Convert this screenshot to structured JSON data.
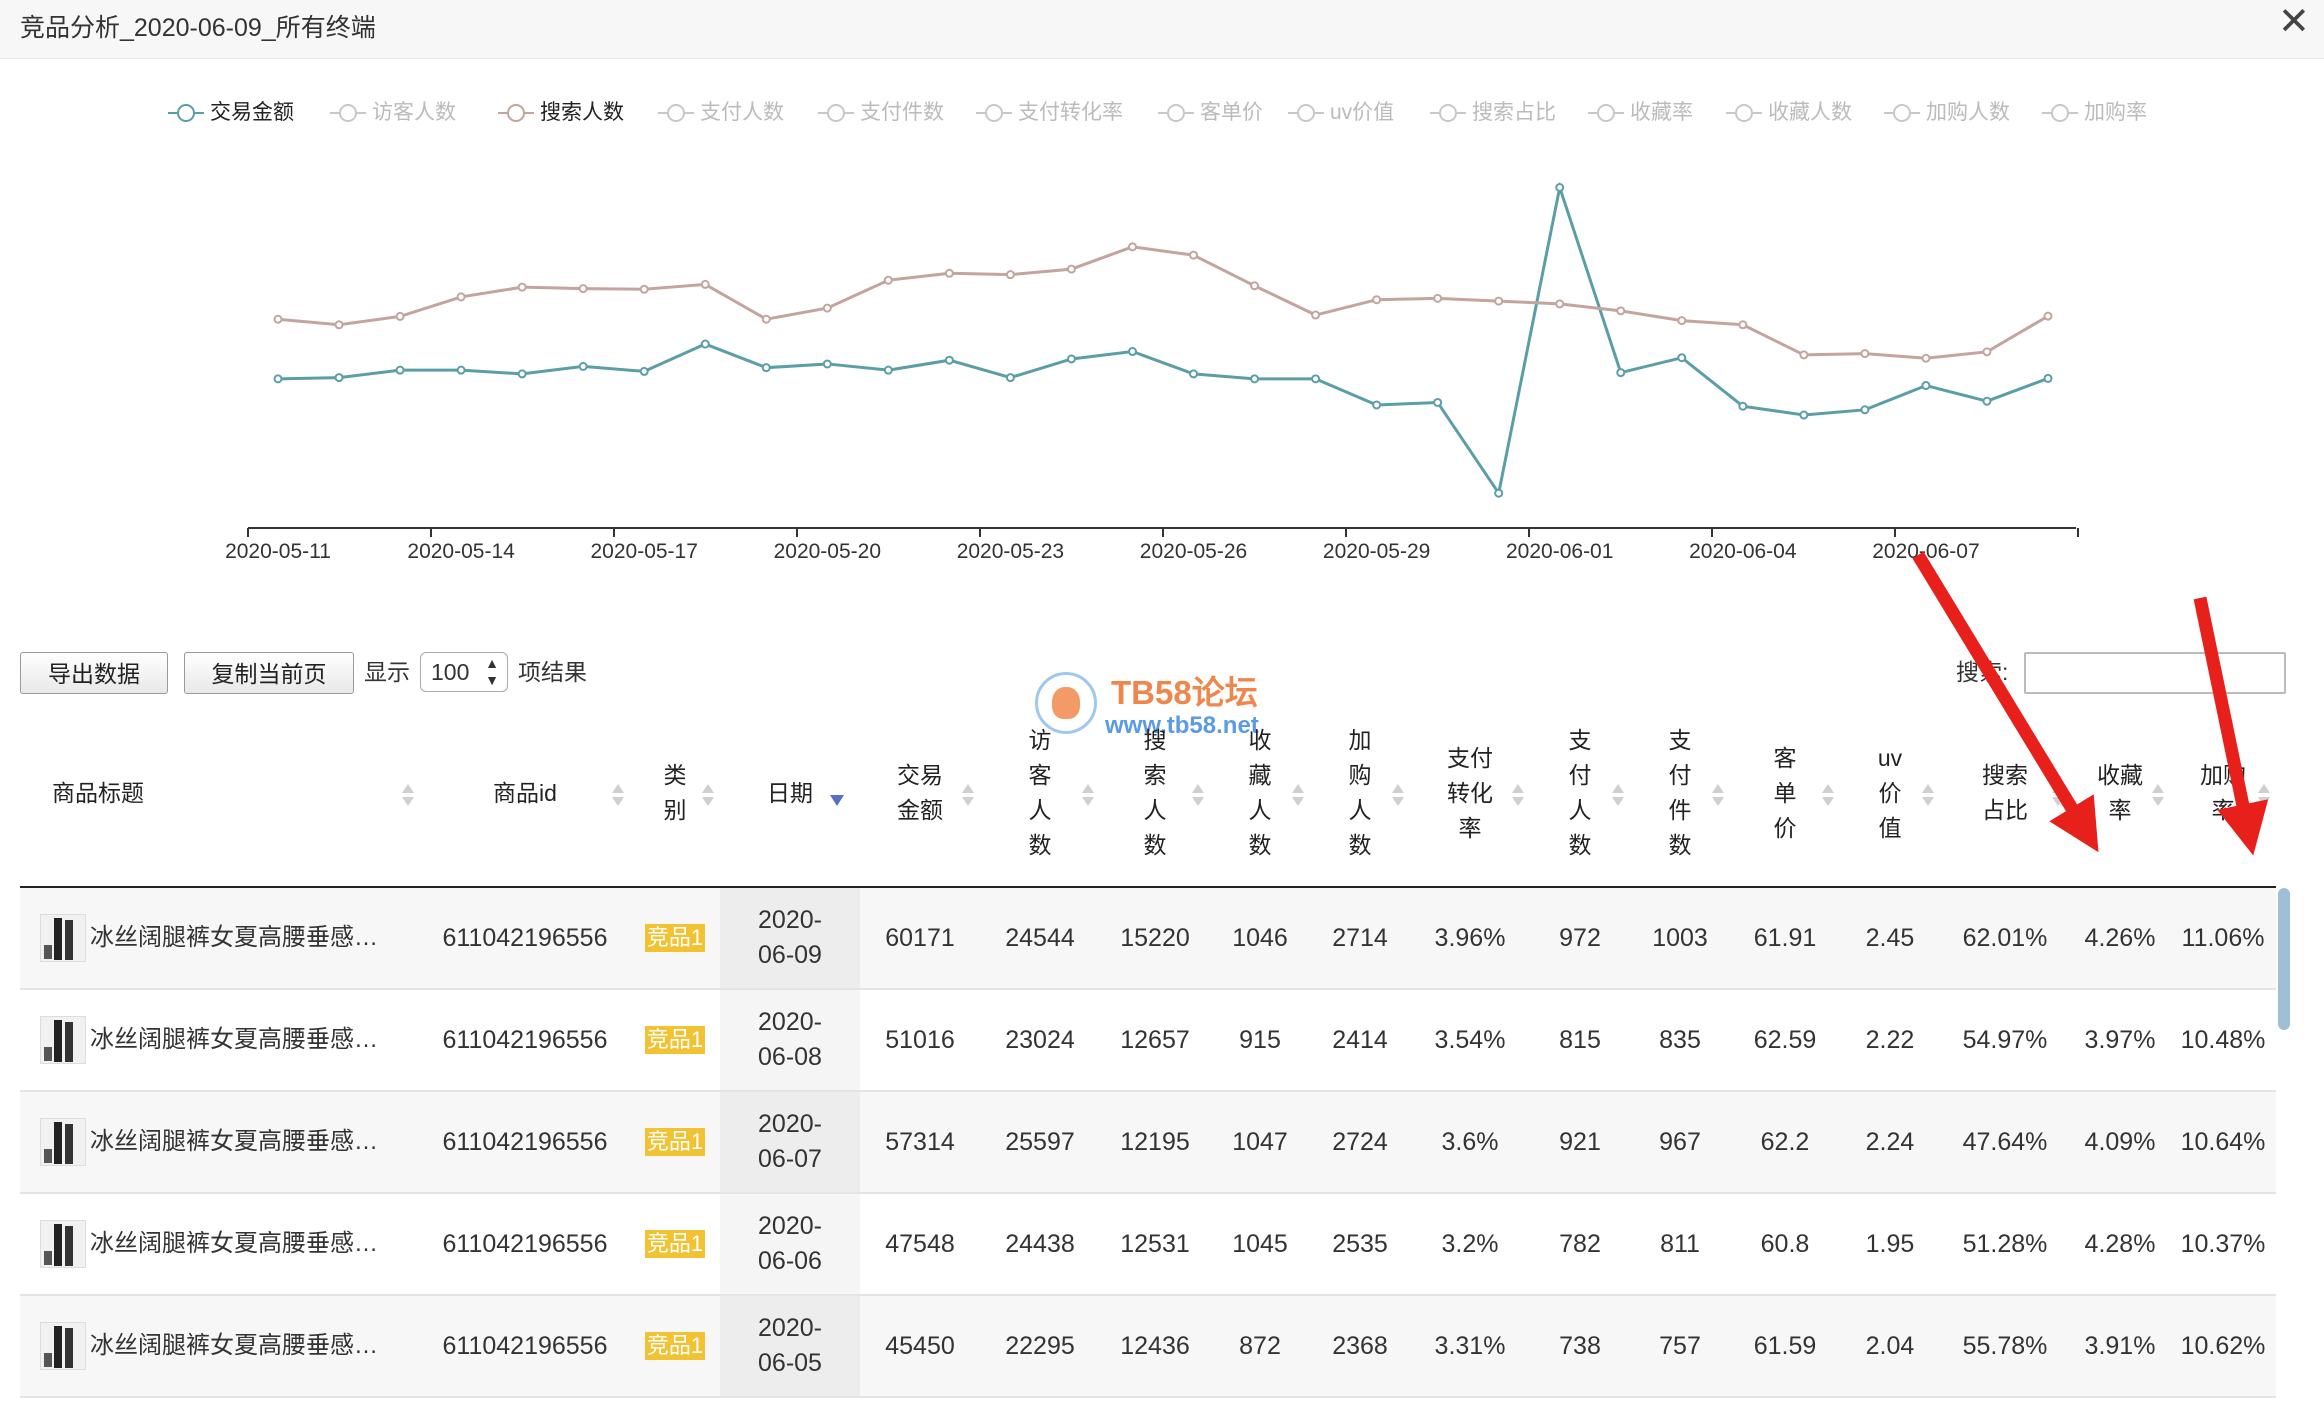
{
  "window": {
    "title": "竞品分析_2020-06-09_所有终端",
    "close_label": "✕"
  },
  "legend": [
    {
      "label": "交易金额",
      "active": true,
      "color": "#5b9ea6"
    },
    {
      "label": "访客人数",
      "active": false,
      "color": "#c8c8c8"
    },
    {
      "label": "搜索人数",
      "active": true,
      "color": "#c4a49d"
    },
    {
      "label": "支付人数",
      "active": false,
      "color": "#c8c8c8"
    },
    {
      "label": "支付件数",
      "active": false,
      "color": "#c8c8c8"
    },
    {
      "label": "支付转化率",
      "active": false,
      "color": "#c8c8c8"
    },
    {
      "label": "客单价",
      "active": false,
      "color": "#c8c8c8"
    },
    {
      "label": "uv价值",
      "active": false,
      "color": "#c8c8c8"
    },
    {
      "label": "搜索占比",
      "active": false,
      "color": "#c8c8c8"
    },
    {
      "label": "收藏率",
      "active": false,
      "color": "#c8c8c8"
    },
    {
      "label": "收藏人数",
      "active": false,
      "color": "#c8c8c8"
    },
    {
      "label": "加购人数",
      "active": false,
      "color": "#c8c8c8"
    },
    {
      "label": "加购率",
      "active": false,
      "color": "#c8c8c8"
    }
  ],
  "chart_data": {
    "type": "line",
    "x": [
      "2020-05-11",
      "2020-05-12",
      "2020-05-13",
      "2020-05-14",
      "2020-05-15",
      "2020-05-16",
      "2020-05-17",
      "2020-05-18",
      "2020-05-19",
      "2020-05-20",
      "2020-05-21",
      "2020-05-22",
      "2020-05-23",
      "2020-05-24",
      "2020-05-25",
      "2020-05-26",
      "2020-05-27",
      "2020-05-28",
      "2020-05-29",
      "2020-05-30",
      "2020-05-31",
      "2020-06-01",
      "2020-06-02",
      "2020-06-03",
      "2020-06-04",
      "2020-06-05",
      "2020-06-06",
      "2020-06-07",
      "2020-06-08",
      "2020-06-09"
    ],
    "x_ticks": [
      "2020-05-11",
      "2020-05-14",
      "2020-05-17",
      "2020-05-20",
      "2020-05-23",
      "2020-05-26",
      "2020-05-29",
      "2020-06-01",
      "2020-06-04",
      "2020-06-07"
    ],
    "series": [
      {
        "name": "交易金额",
        "color": "#5b9ea6",
        "values": [
          60000,
          60500,
          63500,
          63500,
          62000,
          65000,
          63000,
          74000,
          64500,
          66000,
          63500,
          67500,
          60500,
          68000,
          71000,
          62000,
          60000,
          60000,
          49500,
          50500,
          14000,
          137000,
          62500,
          68500,
          49000,
          45450,
          47548,
          57314,
          51016,
          60171
        ]
      },
      {
        "name": "搜索人数",
        "color": "#c4a49d",
        "values": [
          15000,
          14600,
          15200,
          16600,
          17300,
          17200,
          17150,
          17500,
          15000,
          15800,
          17800,
          18300,
          18200,
          18600,
          20200,
          19600,
          17400,
          15300,
          16400,
          16500,
          16300,
          16100,
          15600,
          14900,
          14600,
          12436,
          12531,
          12195,
          12657,
          15220
        ]
      }
    ],
    "title": "",
    "xlabel": "",
    "ylabel": "",
    "ylim_left": [
      0,
      140000
    ],
    "ylim_right": [
      0,
      25000
    ],
    "grid": false,
    "legend_position": "top"
  },
  "toolbar": {
    "export_label": "导出数据",
    "copy_label": "复制当前页",
    "show_label": "显示",
    "page_size": "100",
    "results_label": "项结果",
    "search_label": "搜索:",
    "search_value": ""
  },
  "watermark": {
    "name": "TB58论坛",
    "url": "www.tb58.net"
  },
  "table": {
    "columns": [
      {
        "label": "商品标题"
      },
      {
        "label": "商品id"
      },
      {
        "label": "类\n别"
      },
      {
        "label": "日期"
      },
      {
        "label": "交易\n金额"
      },
      {
        "label": "访\n客\n人\n数"
      },
      {
        "label": "搜\n索\n人\n数"
      },
      {
        "label": "收\n藏\n人\n数"
      },
      {
        "label": "加\n购\n人\n数"
      },
      {
        "label": "支付\n转化\n率"
      },
      {
        "label": "支\n付\n人\n数"
      },
      {
        "label": "支\n付\n件\n数"
      },
      {
        "label": "客\n单\n价"
      },
      {
        "label": "uv\n价\n值"
      },
      {
        "label": "搜索\n占比"
      },
      {
        "label": "收藏\n率"
      },
      {
        "label": "加购\n率"
      }
    ],
    "rows": [
      {
        "title": "冰丝阔腿裤女夏高腰垂感…",
        "id": "611042196556",
        "type": "竞品1",
        "date": "2020-\n06-09",
        "amount": "60171",
        "visitors": "24544",
        "searchers": "15220",
        "favs": "1046",
        "carts": "2714",
        "conv": "3.96%",
        "payers": "972",
        "items": "1003",
        "aov": "61.91",
        "uv": "2.45",
        "search_share": "62.01%",
        "fav_rate": "4.26%",
        "cart_rate": "11.06%"
      },
      {
        "title": "冰丝阔腿裤女夏高腰垂感…",
        "id": "611042196556",
        "type": "竞品1",
        "date": "2020-\n06-08",
        "amount": "51016",
        "visitors": "23024",
        "searchers": "12657",
        "favs": "915",
        "carts": "2414",
        "conv": "3.54%",
        "payers": "815",
        "items": "835",
        "aov": "62.59",
        "uv": "2.22",
        "search_share": "54.97%",
        "fav_rate": "3.97%",
        "cart_rate": "10.48%"
      },
      {
        "title": "冰丝阔腿裤女夏高腰垂感…",
        "id": "611042196556",
        "type": "竞品1",
        "date": "2020-\n06-07",
        "amount": "57314",
        "visitors": "25597",
        "searchers": "12195",
        "favs": "1047",
        "carts": "2724",
        "conv": "3.6%",
        "payers": "921",
        "items": "967",
        "aov": "62.2",
        "uv": "2.24",
        "search_share": "47.64%",
        "fav_rate": "4.09%",
        "cart_rate": "10.64%"
      },
      {
        "title": "冰丝阔腿裤女夏高腰垂感…",
        "id": "611042196556",
        "type": "竞品1",
        "date": "2020-\n06-06",
        "amount": "47548",
        "visitors": "24438",
        "searchers": "12531",
        "favs": "1045",
        "carts": "2535",
        "conv": "3.2%",
        "payers": "782",
        "items": "811",
        "aov": "60.8",
        "uv": "1.95",
        "search_share": "51.28%",
        "fav_rate": "4.28%",
        "cart_rate": "10.37%"
      },
      {
        "title": "冰丝阔腿裤女夏高腰垂感…",
        "id": "611042196556",
        "type": "竞品1",
        "date": "2020-\n06-05",
        "amount": "45450",
        "visitors": "22295",
        "searchers": "12436",
        "favs": "872",
        "carts": "2368",
        "conv": "3.31%",
        "payers": "738",
        "items": "757",
        "aov": "61.59",
        "uv": "2.04",
        "search_share": "55.78%",
        "fav_rate": "3.91%",
        "cart_rate": "10.62%"
      }
    ]
  },
  "annotation_color": "#e8201b"
}
